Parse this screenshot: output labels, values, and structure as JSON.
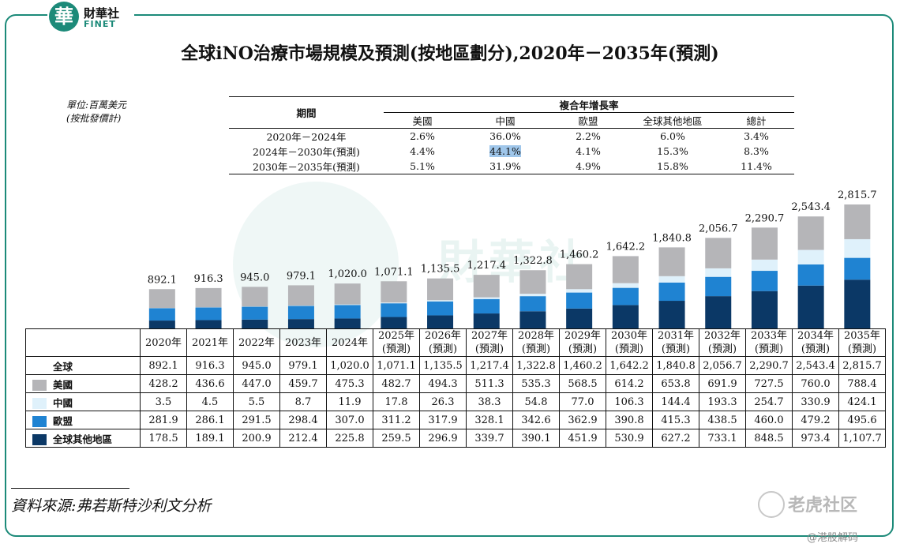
{
  "header": {
    "logo_mark": "華",
    "logo_name": "財華社",
    "logo_en": "FINET"
  },
  "title": "全球iNO治療市場規模及預測(按地區劃分),2020年－2035年(預測)",
  "unit_line1": "單位:百萬美元",
  "unit_line2": "(按批發價計)",
  "cagr_table": {
    "period_header": "期間",
    "group_header": "複合年增長率",
    "columns": [
      "美國",
      "中國",
      "歐盟",
      "全球其他地區",
      "總計"
    ],
    "rows": [
      {
        "period": "2020年－2024年",
        "values": [
          "2.6%",
          "36.0%",
          "2.2%",
          "6.0%",
          "3.4%"
        ]
      },
      {
        "period": "2024年－2030年(預測)",
        "values": [
          "4.4%",
          "44.1%",
          "4.1%",
          "15.3%",
          "8.3%"
        ]
      },
      {
        "period": "2030年－2035年(預測)",
        "values": [
          "5.1%",
          "31.9%",
          "4.9%",
          "15.8%",
          "11.4%"
        ]
      }
    ]
  },
  "watermark_text": "財華社",
  "chart_data": {
    "type": "bar",
    "stacked": true,
    "categories": [
      "2020年",
      "2021年",
      "2022年",
      "2023年",
      "2024年",
      "2025年\n(預測)",
      "2026年\n(預測)",
      "2027年\n(預測)",
      "2028年\n(預測)",
      "2029年\n(預測)",
      "2030年\n(預測)",
      "2031年\n(預測)",
      "2032年\n(預測)",
      "2033年\n(預測)",
      "2034年\n(預測)",
      "2035年\n(預測)"
    ],
    "totals_label": "全球",
    "totals": [
      "892.1",
      "916.3",
      "945.0",
      "979.1",
      "1,020.0",
      "1,071.1",
      "1,135.5",
      "1,217.4",
      "1,322.8",
      "1,460.2",
      "1,642.2",
      "1,840.8",
      "2,056.7",
      "2,290.7",
      "2,543.4",
      "2,815.7"
    ],
    "series": [
      {
        "name": "全球其他地區",
        "color": "#0b3866",
        "values": [
          178.5,
          189.1,
          200.9,
          212.4,
          225.8,
          259.5,
          296.9,
          339.7,
          390.1,
          451.9,
          530.9,
          627.2,
          733.1,
          848.5,
          973.4,
          1107.7
        ],
        "labels": [
          "178.5",
          "189.1",
          "200.9",
          "212.4",
          "225.8",
          "259.5",
          "296.9",
          "339.7",
          "390.1",
          "451.9",
          "530.9",
          "627.2",
          "733.1",
          "848.5",
          "973.4",
          "1,107.7"
        ]
      },
      {
        "name": "歐盟",
        "color": "#1f83d2",
        "values": [
          281.9,
          286.1,
          291.5,
          298.4,
          307.0,
          311.2,
          317.9,
          328.1,
          342.6,
          362.9,
          390.8,
          415.3,
          438.5,
          460.0,
          479.2,
          495.6
        ],
        "labels": [
          "281.9",
          "286.1",
          "291.5",
          "298.4",
          "307.0",
          "311.2",
          "317.9",
          "328.1",
          "342.6",
          "362.9",
          "390.8",
          "415.3",
          "438.5",
          "460.0",
          "479.2",
          "495.6"
        ]
      },
      {
        "name": "中國",
        "color": "#dff1fb",
        "values": [
          3.5,
          4.5,
          5.5,
          8.7,
          11.9,
          17.8,
          26.3,
          38.3,
          54.8,
          77.0,
          106.3,
          144.4,
          193.3,
          254.7,
          330.9,
          424.1
        ],
        "labels": [
          "3.5",
          "4.5",
          "5.5",
          "8.7",
          "11.9",
          "17.8",
          "26.3",
          "38.3",
          "54.8",
          "77.0",
          "106.3",
          "144.4",
          "193.3",
          "254.7",
          "330.9",
          "424.1"
        ]
      },
      {
        "name": "美國",
        "color": "#b5b5b8",
        "values": [
          428.2,
          436.6,
          447.0,
          459.7,
          475.3,
          482.7,
          494.3,
          511.3,
          535.3,
          568.5,
          614.2,
          653.8,
          691.9,
          727.5,
          760.0,
          788.4
        ],
        "labels": [
          "428.2",
          "436.6",
          "447.0",
          "459.7",
          "475.3",
          "482.7",
          "494.3",
          "511.3",
          "535.3",
          "568.5",
          "614.2",
          "653.8",
          "691.9",
          "727.5",
          "760.0",
          "788.4"
        ]
      }
    ],
    "table_row_order": [
      "美國",
      "中國",
      "歐盟",
      "全球其他地區"
    ]
  },
  "source": "資料來源:弗若斯特沙利文分析",
  "brand": "老虎社区",
  "handle": "@港股解码"
}
